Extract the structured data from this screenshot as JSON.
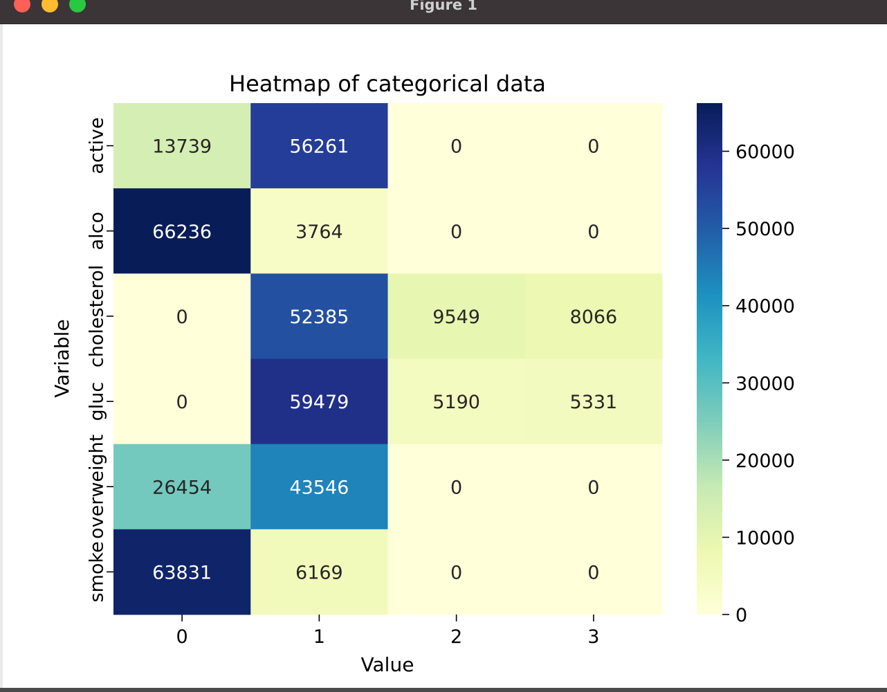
{
  "window": {
    "title": "Figure 1"
  },
  "chart_data": {
    "type": "heatmap",
    "title": "Heatmap of categorical data",
    "xlabel": "Value",
    "ylabel": "Variable",
    "x_categories": [
      "0",
      "1",
      "2",
      "3"
    ],
    "y_categories": [
      "active",
      "alco",
      "cholesterol",
      "gluc",
      "overweight",
      "smoke"
    ],
    "values": [
      [
        13739,
        56261,
        0,
        0
      ],
      [
        66236,
        3764,
        0,
        0
      ],
      [
        0,
        52385,
        9549,
        8066
      ],
      [
        0,
        59479,
        5190,
        5331
      ],
      [
        26454,
        43546,
        0,
        0
      ],
      [
        63831,
        6169,
        0,
        0
      ]
    ],
    "colormap": "YlGnBu",
    "colorbar": {
      "vmin": 0,
      "vmax": 66236,
      "ticks": [
        0,
        10000,
        20000,
        30000,
        40000,
        50000,
        60000
      ]
    },
    "annotations": true
  }
}
